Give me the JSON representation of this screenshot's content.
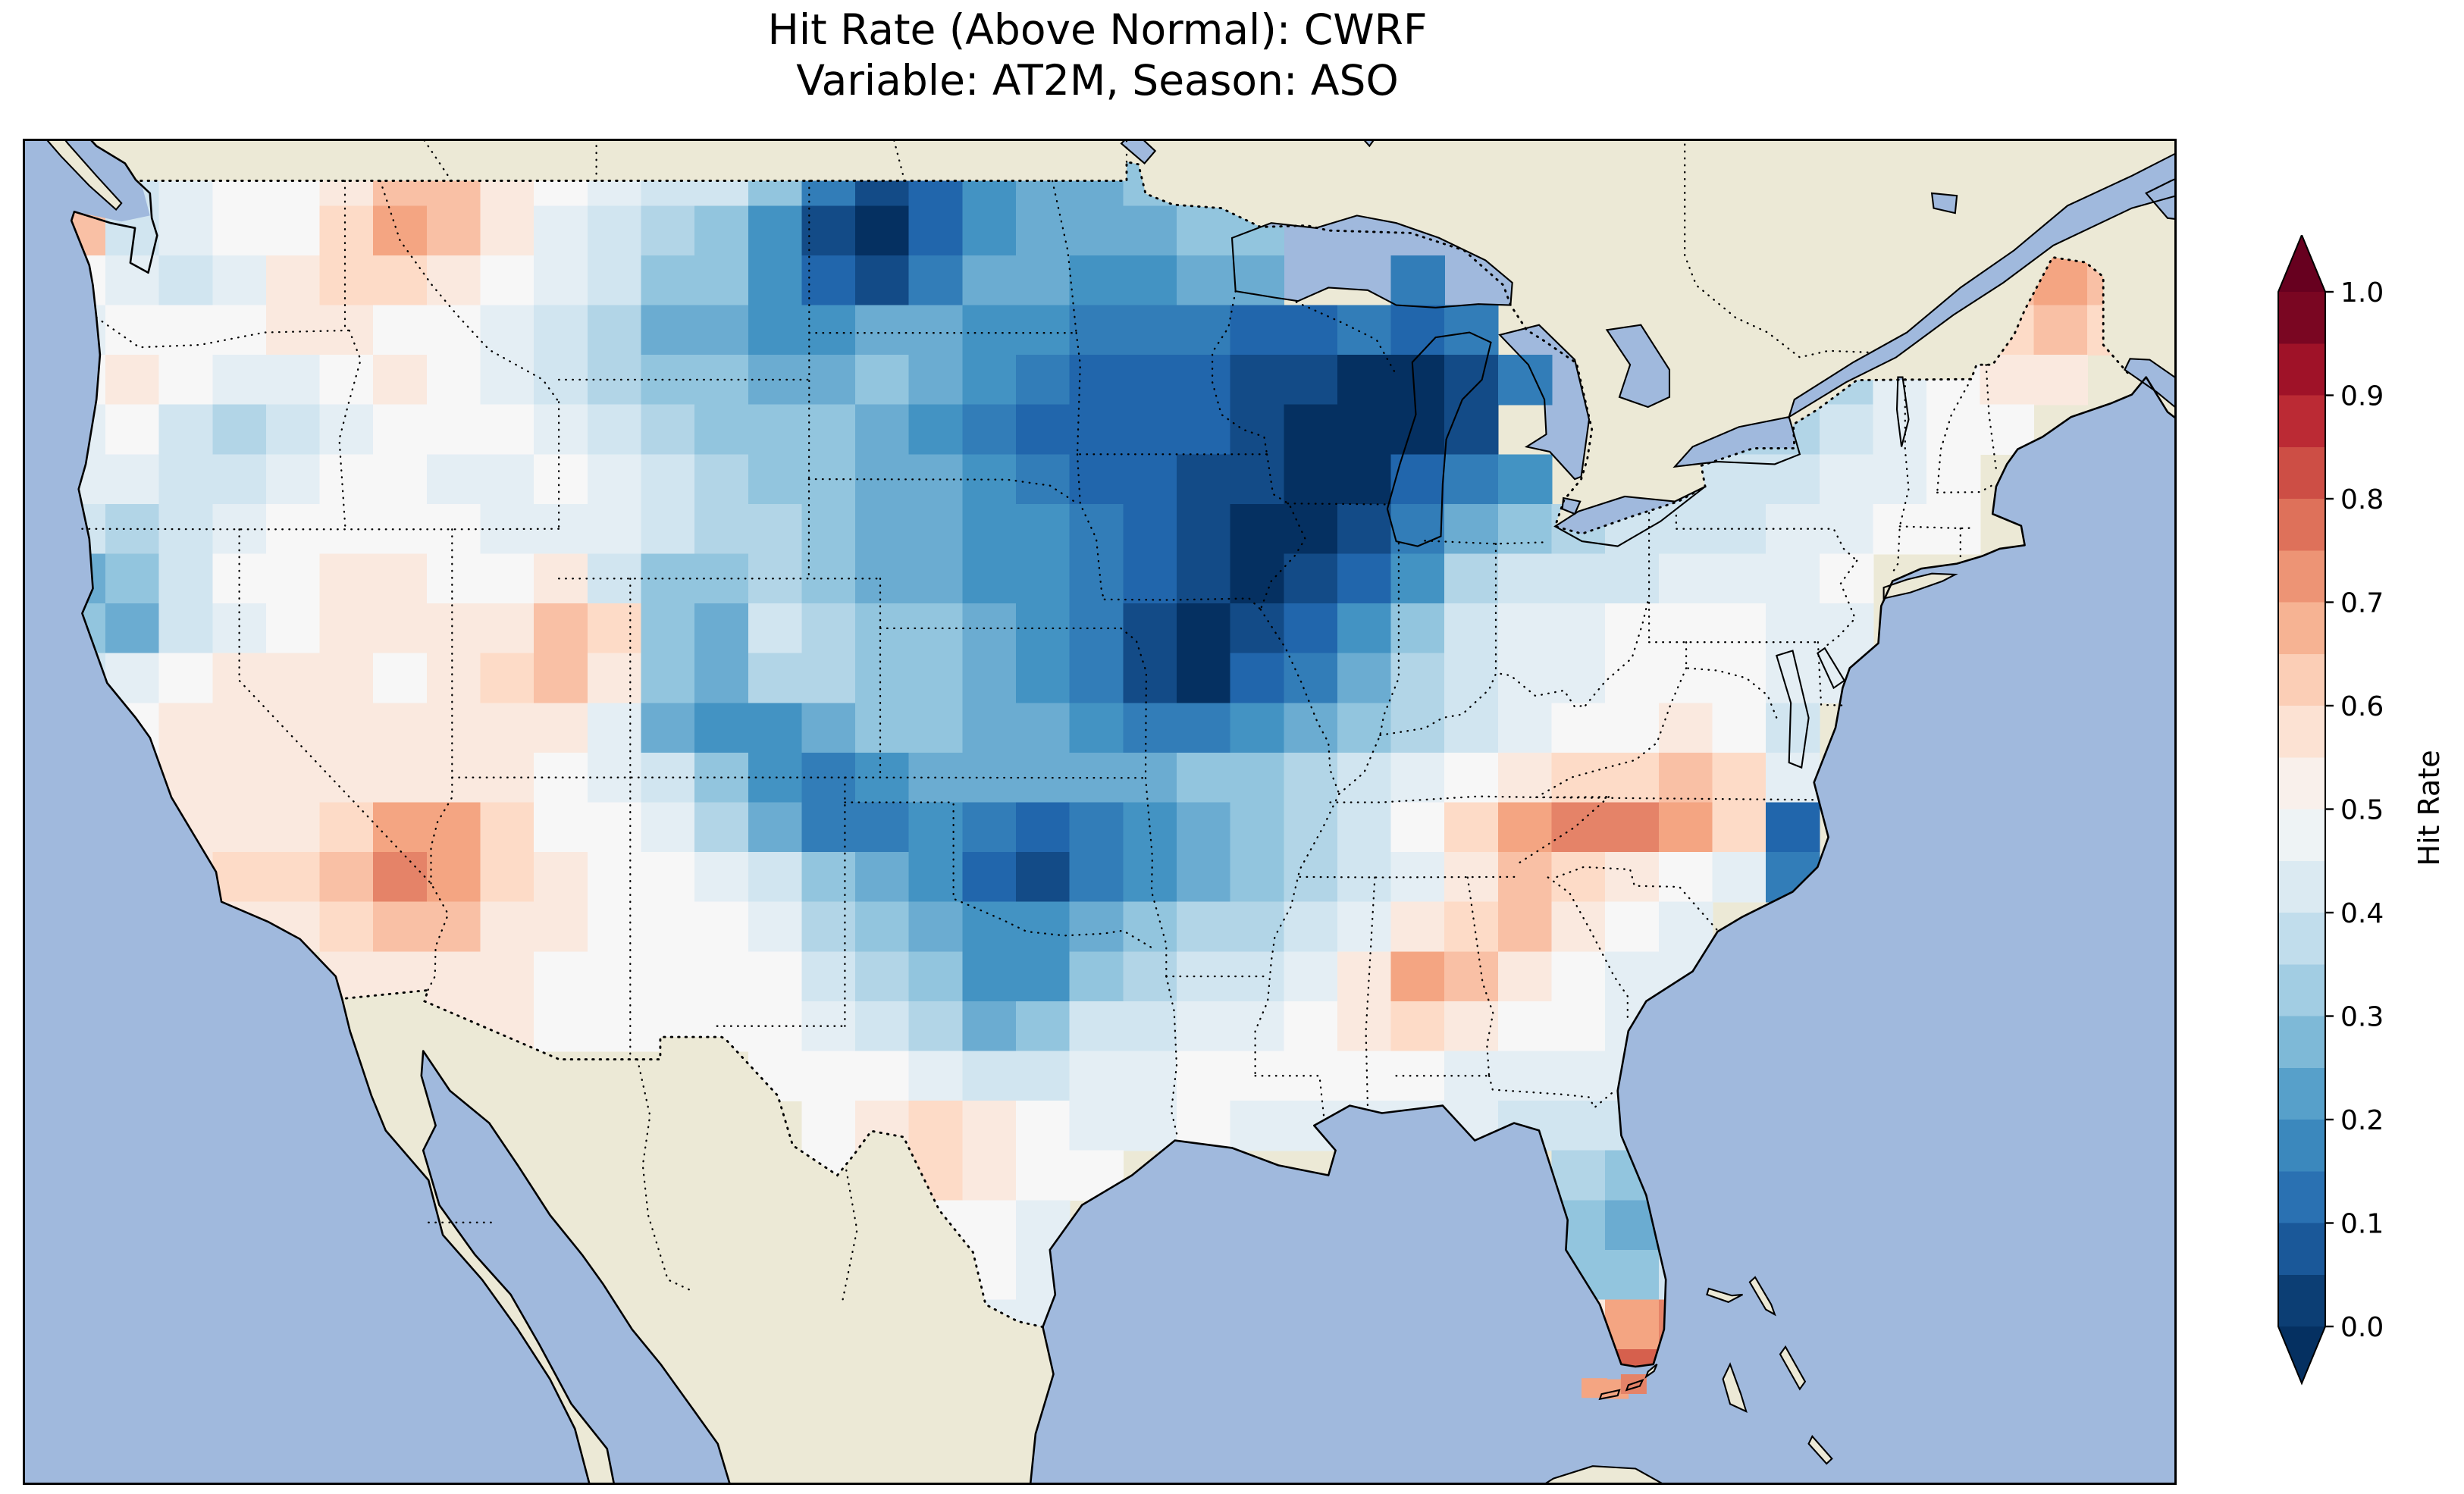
{
  "title": {
    "line1": "Hit Rate (Above Normal): CWRF",
    "line2": "Variable: AT2M, Season: ASO"
  },
  "colorbar": {
    "label": "Hit Rate",
    "tick_labels_top_to_bottom": [
      "1.0",
      "0.9",
      "0.8",
      "0.7",
      "0.6",
      "0.5",
      "0.4",
      "0.3",
      "0.2",
      "0.1",
      "0.0"
    ],
    "vmin": 0.0,
    "vmax": 1.0,
    "n_bands": 20,
    "extend": "both"
  },
  "colors": {
    "ocean": "#a0b9dd",
    "land": "#ece9d6",
    "coastline": "#000000",
    "figure_background": "#ffffff",
    "rdbu_r_anchors": [
      "#053061",
      "#2166ac",
      "#4393c3",
      "#92c5de",
      "#d1e5f0",
      "#f7f7f7",
      "#fddbc7",
      "#f4a582",
      "#d6604d",
      "#b2182b",
      "#67001f"
    ]
  },
  "chart_data": {
    "type": "heatmap",
    "title": "Hit Rate (Above Normal): CWRF",
    "subtitle": "Variable: AT2M, Season: ASO",
    "metric": "Hit Rate (Above Normal)",
    "model": "CWRF",
    "variable": "AT2M",
    "season": "ASO",
    "value_label": "Hit Rate",
    "value_range": [
      0.0,
      1.0
    ],
    "colormap": "RdBu_r",
    "map_extent": {
      "lon": [
        -126.0,
        -65.8
      ],
      "lat": [
        22.8,
        49.8
      ]
    },
    "grid": {
      "description": "Estimated hit-rate values over CONUS. Each row string is one latitude band (top=48.5-49.5N); each char one 1.5-deg lon cell from -125.25E. Value = index_in_key * 0.05; '.' = no data.",
      "lon_min": -125.25,
      "lon_step": 1.5,
      "lat_max": 49.5,
      "lat_step": 1.0,
      "ncols": 40,
      "nrows": 26,
      "value_key": "0123456789ABCDEFGHIJK",
      "value_scale": 0.05,
      "nodata_char": ".",
      "rows": [
        "A89AABDDBA98863124556665................",
        "D89AACEDB98764102455566.............CDC.",
        "A989BCCBA98664213554455..3.........BDED.",
        "9AAABBAA9875544554433322323.......ABCDC.",
        "ABA99ABA98766556543222110013....779ABB..",
        "9A8789AAA987666543222210001....7789AA...",
        "99889AA99A987665543221100234..88899A....",
        "8789AAAA99987765544321001356788899AA....",
        "568AABBAAB86676554432101247888999A......",
        "6589ABBBBDC658766543101246899AAA99......",
        "89ABBBABCDB657766543102357899AAA99......",
        "9ABBBBBBBB954456655433456789AABA8.......",
        "AABBBBBBBA9864345555566789ABCCDC9.......",
        "BBBBBCEECAA97533432345678ACEFFEC2.......",
        "BBBCCDFECBAA98654213456789BDCBA93.......",
        "...BBCDDBBAAA976544567789BCDBA9.........",
        ".....BBBBAAAAA8764467889BEDBA99.........",
        "......BBBAAAAA987568899ABCBAA9..........",
        ".............AAA98899AAAAA9999..........",
        "..............ABCBA99A99999888..........",
        "..............ABCBAA........76..........",
        "................AA9.........657.........",
        ".................A9.........668.........",
        ".................99.........BEF.........",
        "............................DGG.........",
        "........................................"
      ]
    },
    "extra_cells": [
      {
        "lon": -82.05,
        "lat": 24.72,
        "value": 0.7
      },
      {
        "lon": -81.45,
        "lat": 24.7,
        "value": 0.7
      },
      {
        "lon": -80.95,
        "lat": 24.8,
        "value": 0.75
      }
    ]
  }
}
